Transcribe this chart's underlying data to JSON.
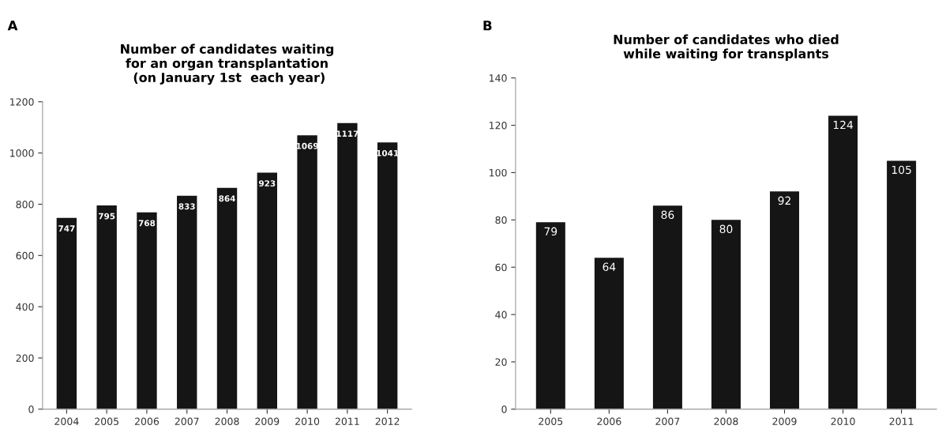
{
  "chart_data": [
    {
      "type": "bar",
      "title": "Number of candidates waiting\nfor an organ transplantation\n (on January 1st  each year)",
      "annotations": [
        "A"
      ],
      "categories": [
        "2004",
        "2005",
        "2006",
        "2007",
        "2008",
        "2009",
        "2010",
        "2011",
        "2012"
      ],
      "values": [
        747,
        795,
        768,
        833,
        864,
        923,
        1069,
        1117,
        1041
      ],
      "color": "#151515",
      "ylim": [
        0,
        1200
      ],
      "yticks": [
        0,
        200,
        400,
        600,
        800,
        1000,
        1200
      ],
      "grid": false,
      "data_labels": true
    },
    {
      "type": "bar",
      "title": "Number of candidates who died\nwhile waiting for transplants",
      "annotations": [
        "B"
      ],
      "categories": [
        "2005",
        "2006",
        "2007",
        "2008",
        "2009",
        "2010",
        "2011"
      ],
      "values": [
        79,
        64,
        86,
        80,
        92,
        124,
        105
      ],
      "color": "#151515",
      "ylim": [
        0,
        140
      ],
      "yticks": [
        0,
        20,
        40,
        60,
        80,
        100,
        120,
        140
      ],
      "grid": false,
      "data_labels": true
    }
  ]
}
